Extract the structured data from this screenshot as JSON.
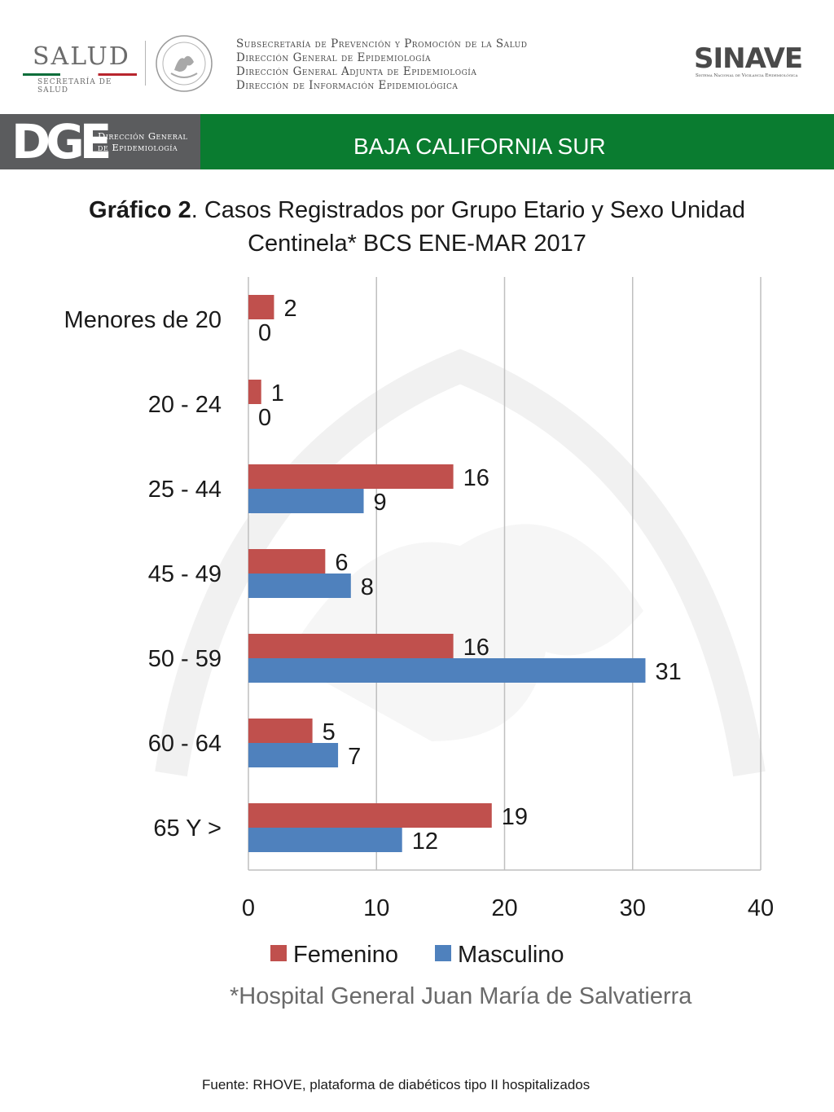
{
  "header": {
    "salud_logo": {
      "word": "SALUD",
      "subtitle": "SECRETARÍA DE SALUD"
    },
    "subsecretaria_lines": [
      "Subsecretaría de Prevención y Promoción de la Salud",
      "Dirección General de Epidemiología",
      "Dirección General Adjunta de Epidemiología",
      "Dirección de Información Epidemiológica"
    ],
    "sinave_logo": {
      "word": "SINAVE",
      "subtitle": "Sistema Nacional de Vigilancia Epidemiológica"
    },
    "seal_icon": "mexico-seal-icon"
  },
  "band": {
    "dge_letters": "DGE",
    "dge_text_lines": [
      "Dirección General",
      "de Epidemiología"
    ],
    "state": "BAJA CALIFORNIA SUR",
    "colors": {
      "left": "#5b5c5e",
      "right": "#0a7c30"
    }
  },
  "chart_data": {
    "type": "bar",
    "orientation": "horizontal",
    "title_bold": "Gráfico 2",
    "title_rest": ". Casos Registrados por Grupo Etario y Sexo Unidad Centinela* BCS ENE-MAR 2017",
    "categories": [
      "Menores de 20",
      "20 - 24",
      "25 - 44",
      "45 - 49",
      "50 - 59",
      "60 - 64",
      "65 Y >"
    ],
    "series": [
      {
        "name": "Femenino",
        "color": "#c0504d",
        "values": [
          2,
          1,
          16,
          6,
          16,
          5,
          19
        ]
      },
      {
        "name": "Masculino",
        "color": "#4f81bd",
        "values": [
          0,
          0,
          9,
          8,
          31,
          7,
          12
        ]
      }
    ],
    "xlim": [
      0,
      40
    ],
    "xticks": [
      "0",
      "10",
      "20",
      "30",
      "40"
    ],
    "grid": true,
    "legend": "bottom",
    "data_labels": true
  },
  "footnote": "*Hospital General Juan María de Salvatierra",
  "source": "Fuente: RHOVE, plataforma de diabéticos tipo II hospitalizados"
}
